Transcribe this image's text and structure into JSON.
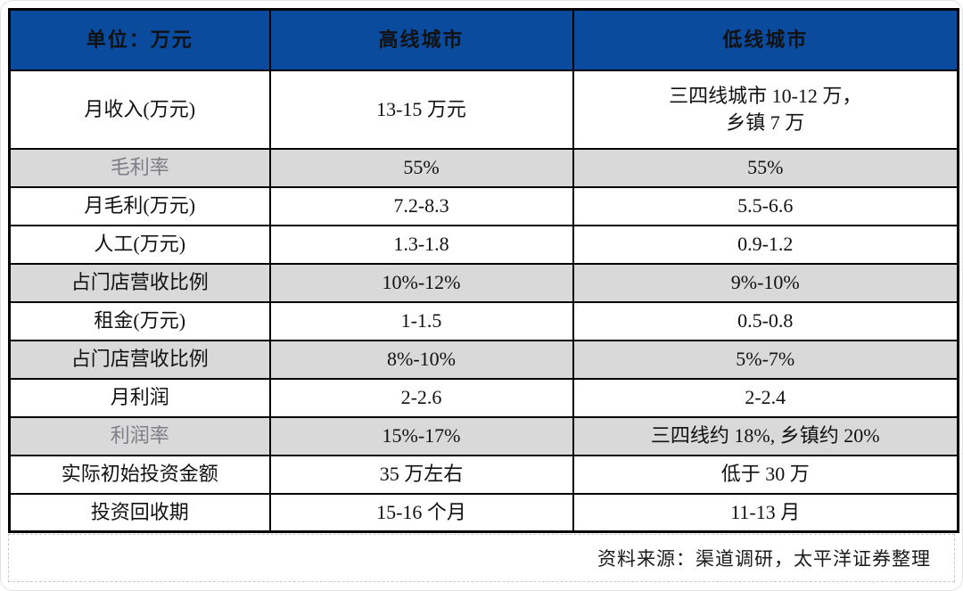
{
  "table": {
    "headers": [
      "单位：万元",
      "高线城市",
      "低线城市"
    ],
    "rows": [
      {
        "label": "月收入(万元)",
        "high": "13-15 万元",
        "low": "三四线城市 10-12 万，\n乡镇 7 万",
        "shaded": false,
        "label_gray": false,
        "tall": true
      },
      {
        "label": "毛利率",
        "high": "55%",
        "low": "55%",
        "shaded": true,
        "label_gray": true,
        "tall": false
      },
      {
        "label": "月毛利(万元)",
        "high": "7.2-8.3",
        "low": "5.5-6.6",
        "shaded": false,
        "label_gray": false,
        "tall": false
      },
      {
        "label": "人工(万元)",
        "high": "1.3-1.8",
        "low": "0.9-1.2",
        "shaded": false,
        "label_gray": false,
        "tall": false
      },
      {
        "label": "占门店营收比例",
        "high": "10%-12%",
        "low": "9%-10%",
        "shaded": true,
        "label_gray": false,
        "tall": false
      },
      {
        "label": "租金(万元)",
        "high": "1-1.5",
        "low": "0.5-0.8",
        "shaded": false,
        "label_gray": false,
        "tall": false
      },
      {
        "label": "占门店营收比例",
        "high": "8%-10%",
        "low": "5%-7%",
        "shaded": true,
        "label_gray": false,
        "tall": false
      },
      {
        "label": "月利润",
        "high": "2-2.6",
        "low": "2-2.4",
        "shaded": false,
        "label_gray": false,
        "tall": false
      },
      {
        "label": "利润率",
        "high": "15%-17%",
        "low": "三四线约 18%, 乡镇约 20%",
        "shaded": true,
        "label_gray": true,
        "tall": false
      },
      {
        "label": "实际初始投资金额",
        "high": "35 万左右",
        "low": "低于 30 万",
        "shaded": false,
        "label_gray": false,
        "tall": false
      },
      {
        "label": "投资回收期",
        "high": "15-16 个月",
        "low": "11-13 月",
        "shaded": false,
        "label_gray": false,
        "tall": false
      }
    ]
  },
  "footer": {
    "source": "资料来源：渠道调研，太平洋证券整理"
  },
  "colors": {
    "header_bg": "#0A4B9D",
    "shaded_row_bg": "#D9D9D9",
    "gray_label": "#7E7E88",
    "border": "#000000"
  }
}
